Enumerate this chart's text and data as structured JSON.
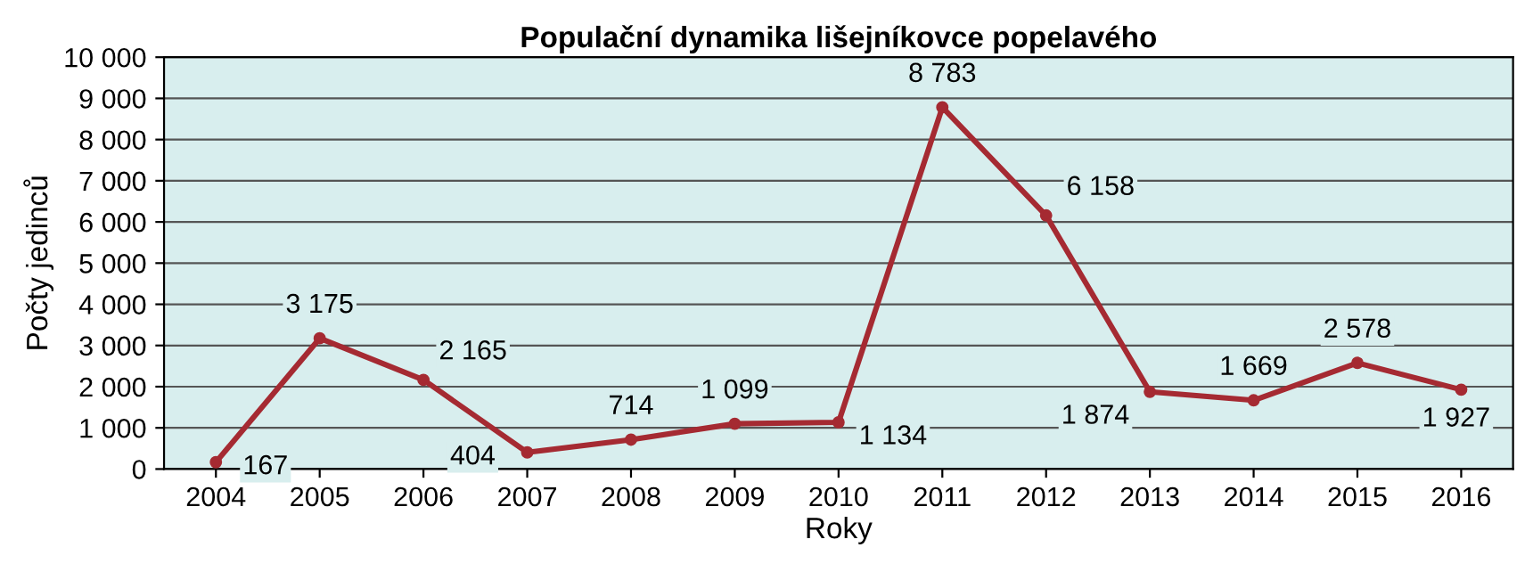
{
  "chart_data": {
    "type": "line",
    "title": "Populační dynamika lišejníkovce popelavého",
    "xlabel": "Roky",
    "ylabel": "Počty jedinců",
    "categories": [
      "2004",
      "2005",
      "2006",
      "2007",
      "2008",
      "2009",
      "2010",
      "2011",
      "2012",
      "2013",
      "2014",
      "2015",
      "2016"
    ],
    "series": [
      {
        "color": "#a52a32",
        "values": [
          167,
          3175,
          2165,
          404,
          714,
          1099,
          1134,
          8783,
          6158,
          1874,
          1669,
          2578,
          1927
        ]
      }
    ],
    "value_labels": [
      "167",
      "3 175",
      "2 165",
      "404",
      "714",
      "1 099",
      "1 134",
      "8 783",
      "6 158",
      "1 874",
      "1 669",
      "2 578",
      "1 927"
    ],
    "ylim": [
      0,
      10000
    ],
    "yticks": [
      0,
      {
        "value": 1000,
        "label": "1 000"
      },
      {
        "value": 2000,
        "label": "2 000"
      },
      {
        "value": 3000,
        "label": "3 000"
      },
      {
        "value": 4000,
        "label": "4 000"
      },
      {
        "value": 5000,
        "label": "5 000"
      },
      {
        "value": 6000,
        "label": "6 000"
      },
      {
        "value": 7000,
        "label": "7 000"
      },
      {
        "value": 8000,
        "label": "8 000"
      },
      {
        "value": 9000,
        "label": "9 000"
      },
      {
        "value": 10000,
        "label": "10 000"
      }
    ],
    "grid": "y",
    "marker": "circle",
    "line_style": "solid",
    "legend": false
  }
}
